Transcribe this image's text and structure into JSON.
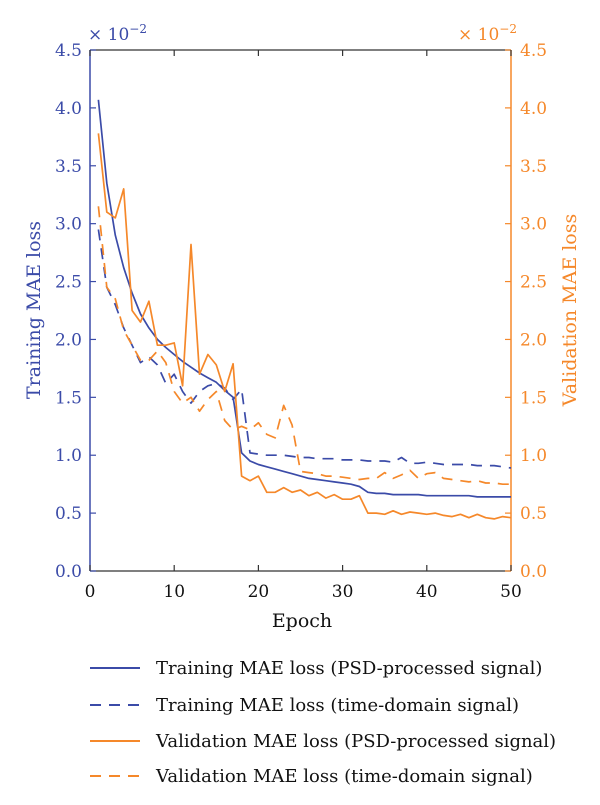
{
  "chart_data": {
    "type": "line",
    "xlabel": "Epoch",
    "ylabel_left": "Training MAE loss",
    "ylabel_right": "Validation MAE loss",
    "scale_left": "× 10",
    "scale_left_exp": "−2",
    "scale_right": "× 10",
    "scale_right_exp": "−2",
    "xlim": [
      0,
      50
    ],
    "ylim": [
      0.0,
      4.5
    ],
    "x_ticks": [
      0,
      10,
      20,
      30,
      40,
      50
    ],
    "y_ticks": [
      "0.0",
      "0.5",
      "1.0",
      "1.5",
      "2.0",
      "2.5",
      "3.0",
      "3.5",
      "4.0",
      "4.5"
    ],
    "grid": false,
    "legend_position": "bottom",
    "colors": {
      "training": "#3b4ba8",
      "validation": "#f5882a"
    },
    "series": [
      {
        "name": "Training MAE loss (PSD-processed signal)",
        "axis": "left",
        "style": "solid",
        "color": "#3b4ba8",
        "x": [
          1,
          2,
          3,
          4,
          5,
          6,
          7,
          8,
          9,
          10,
          11,
          12,
          13,
          14,
          15,
          16,
          17,
          18,
          19,
          20,
          21,
          22,
          23,
          24,
          25,
          26,
          27,
          28,
          29,
          30,
          31,
          32,
          33,
          34,
          35,
          36,
          37,
          38,
          39,
          40,
          41,
          42,
          43,
          44,
          45,
          46,
          47,
          48,
          49,
          50
        ],
        "values": [
          4.07,
          3.35,
          2.9,
          2.62,
          2.4,
          2.22,
          2.1,
          2.0,
          1.93,
          1.87,
          1.81,
          1.76,
          1.71,
          1.67,
          1.63,
          1.56,
          1.5,
          1.02,
          0.95,
          0.92,
          0.9,
          0.88,
          0.86,
          0.84,
          0.82,
          0.8,
          0.79,
          0.78,
          0.77,
          0.76,
          0.75,
          0.73,
          0.68,
          0.67,
          0.67,
          0.66,
          0.66,
          0.66,
          0.66,
          0.65,
          0.65,
          0.65,
          0.65,
          0.65,
          0.65,
          0.64,
          0.64,
          0.64,
          0.64,
          0.64
        ]
      },
      {
        "name": "Training MAE loss (time-domain signal)",
        "axis": "left",
        "style": "dashed",
        "color": "#3b4ba8",
        "x": [
          1,
          2,
          3,
          4,
          5,
          6,
          7,
          8,
          9,
          10,
          11,
          12,
          13,
          14,
          15,
          16,
          17,
          18,
          19,
          20,
          21,
          22,
          23,
          24,
          25,
          26,
          27,
          28,
          29,
          30,
          31,
          32,
          33,
          34,
          35,
          36,
          37,
          38,
          39,
          40,
          41,
          42,
          43,
          44,
          45,
          46,
          47,
          48,
          49,
          50
        ],
        "values": [
          2.95,
          2.45,
          2.3,
          2.1,
          1.95,
          1.8,
          1.85,
          1.78,
          1.62,
          1.7,
          1.55,
          1.45,
          1.55,
          1.6,
          1.62,
          1.58,
          1.48,
          1.57,
          1.02,
          1.01,
          1.0,
          1.0,
          1.0,
          0.99,
          0.98,
          0.98,
          0.97,
          0.97,
          0.97,
          0.96,
          0.96,
          0.96,
          0.95,
          0.95,
          0.95,
          0.94,
          0.98,
          0.93,
          0.93,
          0.94,
          0.93,
          0.92,
          0.92,
          0.92,
          0.92,
          0.91,
          0.91,
          0.91,
          0.9,
          0.89
        ]
      },
      {
        "name": "Validation MAE loss (PSD-processed signal)",
        "axis": "right",
        "style": "solid",
        "color": "#f5882a",
        "x": [
          1,
          2,
          3,
          4,
          5,
          6,
          7,
          8,
          9,
          10,
          11,
          12,
          13,
          14,
          15,
          16,
          17,
          18,
          19,
          20,
          21,
          22,
          23,
          24,
          25,
          26,
          27,
          28,
          29,
          30,
          31,
          32,
          33,
          34,
          35,
          36,
          37,
          38,
          39,
          40,
          41,
          42,
          43,
          44,
          45,
          46,
          47,
          48,
          49,
          50
        ],
        "values": [
          3.78,
          3.1,
          3.05,
          3.3,
          2.25,
          2.15,
          2.33,
          1.95,
          1.95,
          1.97,
          1.6,
          2.82,
          1.7,
          1.87,
          1.78,
          1.55,
          1.79,
          0.82,
          0.78,
          0.82,
          0.68,
          0.68,
          0.72,
          0.68,
          0.7,
          0.65,
          0.68,
          0.63,
          0.66,
          0.62,
          0.62,
          0.65,
          0.5,
          0.5,
          0.49,
          0.52,
          0.49,
          0.51,
          0.5,
          0.49,
          0.5,
          0.48,
          0.47,
          0.49,
          0.46,
          0.49,
          0.46,
          0.45,
          0.47,
          0.46
        ]
      },
      {
        "name": "Validation MAE loss (time-domain signal)",
        "axis": "right",
        "style": "dashed",
        "color": "#f5882a",
        "x": [
          1,
          2,
          3,
          4,
          5,
          6,
          7,
          8,
          9,
          10,
          11,
          12,
          13,
          14,
          15,
          16,
          17,
          18,
          19,
          20,
          21,
          22,
          23,
          24,
          25,
          26,
          27,
          28,
          29,
          30,
          31,
          32,
          33,
          34,
          35,
          36,
          37,
          38,
          39,
          40,
          41,
          42,
          43,
          44,
          45,
          46,
          47,
          48,
          49,
          50
        ],
        "values": [
          3.15,
          2.45,
          2.35,
          2.08,
          1.95,
          1.82,
          1.82,
          1.9,
          1.8,
          1.55,
          1.45,
          1.5,
          1.38,
          1.48,
          1.55,
          1.3,
          1.22,
          1.25,
          1.22,
          1.28,
          1.18,
          1.15,
          1.43,
          1.26,
          0.86,
          0.85,
          0.84,
          0.82,
          0.82,
          0.81,
          0.8,
          0.79,
          0.8,
          0.8,
          0.85,
          0.8,
          0.83,
          0.87,
          0.8,
          0.84,
          0.85,
          0.8,
          0.79,
          0.78,
          0.77,
          0.78,
          0.76,
          0.76,
          0.75,
          0.75
        ]
      }
    ]
  }
}
